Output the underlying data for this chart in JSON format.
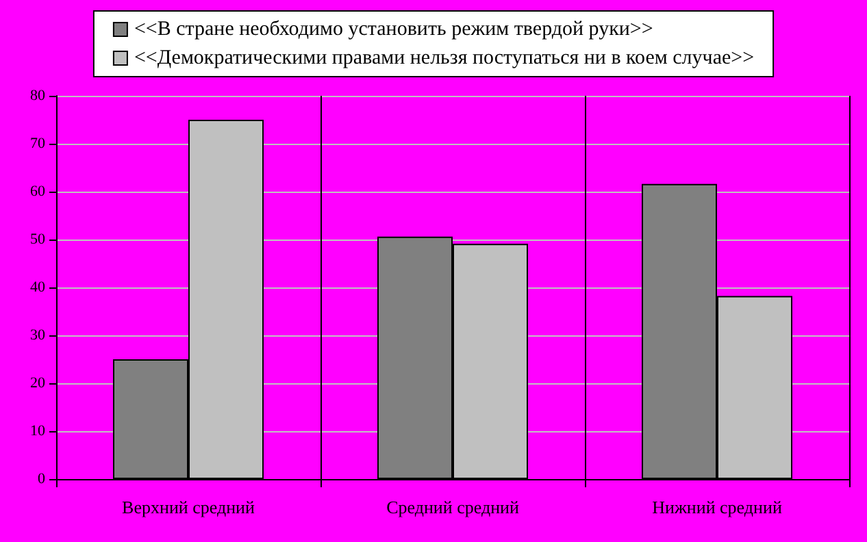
{
  "chart_data": {
    "type": "bar",
    "categories": [
      "Верхний средний",
      "Средний средний",
      "Нижний средний"
    ],
    "series": [
      {
        "name": "<<В стране необходимо установить режим твердой руки>>",
        "color": "#808080",
        "values": [
          25,
          50.6,
          61.6
        ]
      },
      {
        "name": "<<Демократическими правами нельзя поступаться ни в коем случае>>",
        "color": "#c0c0c0",
        "values": [
          75,
          49.1,
          38.2
        ]
      }
    ],
    "ylim": [
      0,
      80
    ],
    "yticks": [
      0,
      10,
      20,
      30,
      40,
      50,
      60,
      70,
      80
    ],
    "grid": true,
    "legend": "top"
  }
}
